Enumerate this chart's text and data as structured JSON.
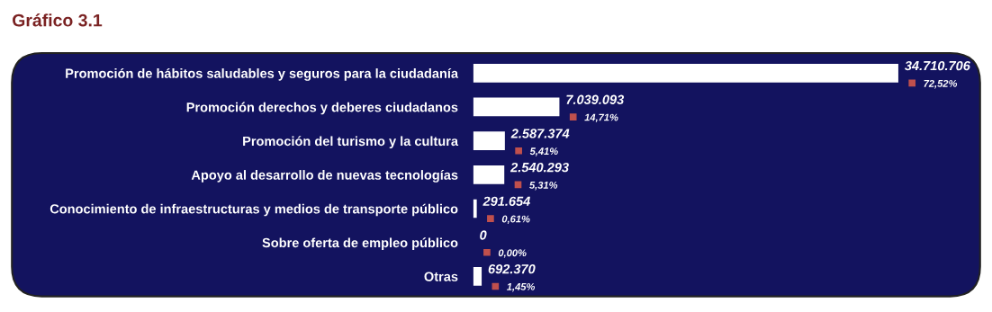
{
  "chart_data": {
    "type": "bar",
    "orientation": "horizontal",
    "title": "Gráfico 3.1",
    "categories": [
      "Promoción de hábitos saludables y seguros para la ciudadanía",
      "Promoción derechos y deberes ciudadanos",
      "Promoción del turismo y la cultura",
      "Apoyo al desarrollo de nuevas tecnologías",
      "Conocimiento de infraestructuras y medios de transporte público",
      "Sobre oferta de empleo público",
      "Otras"
    ],
    "values": [
      34710706,
      7039093,
      2587374,
      2540293,
      291654,
      0,
      692370
    ],
    "value_labels": [
      "34.710.706",
      "7.039.093",
      "2.587.374",
      "2.540.293",
      "291.654",
      "0",
      "692.370"
    ],
    "color": "#ffffff",
    "annotations": [
      "72,52%",
      "14,71%",
      "5,41%",
      "5,31%",
      "0,61%",
      "0,00%",
      "1,45%"
    ],
    "tick_labels": "y",
    "grid": false,
    "legend": false
  }
}
